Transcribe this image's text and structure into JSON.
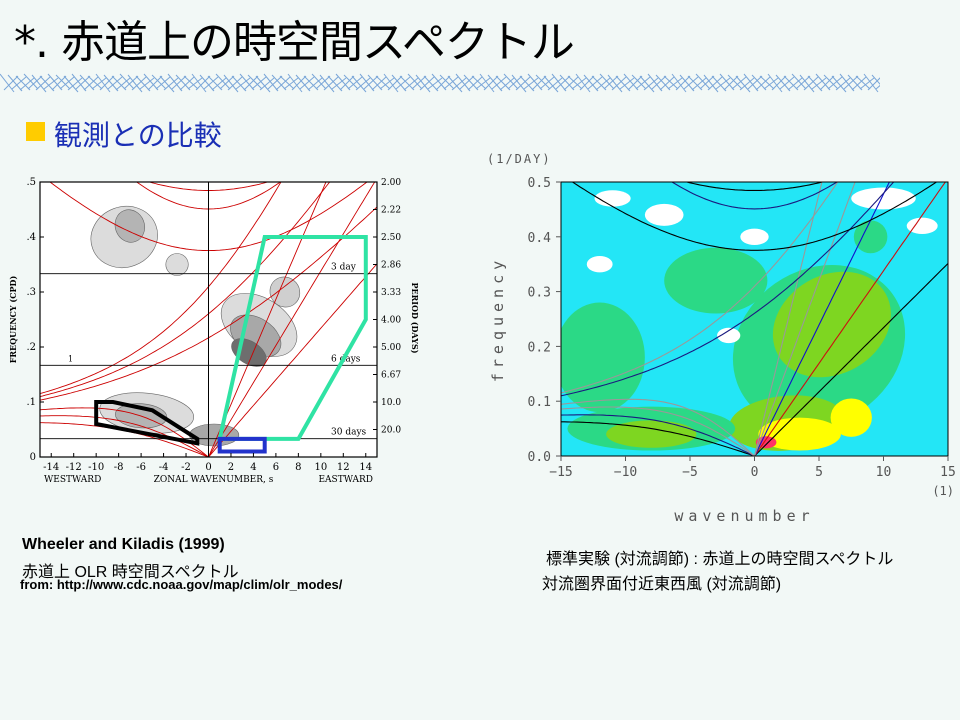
{
  "slide": {
    "title": "*. 赤道上の時空間スペクトル",
    "subtitle": "観測との比較",
    "accent_color": "#1a2fb5",
    "bullet_color": "#ffcc00"
  },
  "left_caption": {
    "line1": "Wheeler and Kiladis (1999)",
    "line2": "赤道上 OLR 時空間スペクトル",
    "line3": "from: http://www.cdc.noaa.gov/map/clim/olr_modes/"
  },
  "right_caption": {
    "line1": "標準実験 (対流調節) : 赤道上の時空間スペクトル",
    "line2": "対流圏界面付近東西風 (対流調節)"
  },
  "chart_data": [
    {
      "type": "heatmap",
      "ylabel": "FREQUENCY (CPD)",
      "y2label": "PERIOD (DAYS)",
      "xlabel_left": "WESTWARD",
      "xlabel": "ZONAL WAVENUMBER, s",
      "xlabel_right": "EASTWARD",
      "xlim": [
        -15,
        15
      ],
      "ylim": [
        0,
        0.5
      ],
      "x_ticks": [
        -14,
        -12,
        -10,
        -8,
        -6,
        -4,
        -2,
        0,
        2,
        4,
        6,
        8,
        10,
        12,
        14
      ],
      "y_ticks": [
        0,
        0.1,
        0.2,
        0.3,
        0.4,
        0.5
      ],
      "y_tick_labels": [
        "0",
        ".1",
        ".2",
        ".3",
        ".4",
        ".5"
      ],
      "period_ticks": [
        {
          "f": 0.5,
          "label": "2.00"
        },
        {
          "f": 0.45,
          "label": "2.22"
        },
        {
          "f": 0.4,
          "label": "2.50"
        },
        {
          "f": 0.35,
          "label": "2.86"
        },
        {
          "f": 0.3,
          "label": "3.33"
        },
        {
          "f": 0.25,
          "label": "4.00"
        },
        {
          "f": 0.2,
          "label": "5.00"
        },
        {
          "f": 0.15,
          "label": "6.67"
        },
        {
          "f": 0.1,
          "label": "10.0"
        },
        {
          "f": 0.05,
          "label": "20.0"
        }
      ],
      "reference_lines": [
        {
          "f": 0.3333,
          "label": "3 day"
        },
        {
          "f": 0.1667,
          "label": "6 days"
        },
        {
          "f": 0.0333,
          "label": "30 days"
        }
      ],
      "annotation_marker": "1",
      "gray_regions": [
        {
          "x": 4.5,
          "y": 0.24,
          "rx": 2.4,
          "ry": 0.075,
          "rot": -58,
          "shade": "#dcdcdc"
        },
        {
          "x": 4.2,
          "y": 0.22,
          "rx": 1.6,
          "ry": 0.05,
          "rot": -58,
          "shade": "#a8a8a8"
        },
        {
          "x": 3.6,
          "y": 0.19,
          "rx": 1.0,
          "ry": 0.035,
          "rot": -58,
          "shade": "#6e6e6e"
        },
        {
          "x": 6.8,
          "y": 0.3,
          "rx": 1.3,
          "ry": 0.028,
          "rot": -40,
          "shade": "#cfcfcf"
        },
        {
          "x": -5.5,
          "y": 0.08,
          "rx": 4.2,
          "ry": 0.036,
          "rot": 6,
          "shade": "#dcdcdc"
        },
        {
          "x": -6.0,
          "y": 0.075,
          "rx": 2.3,
          "ry": 0.022,
          "rot": 4,
          "shade": "#b4b4b4"
        },
        {
          "x": -7.5,
          "y": 0.4,
          "rx": 3.0,
          "ry": 0.055,
          "rot": -20,
          "shade": "#dcdcdc"
        },
        {
          "x": -7.0,
          "y": 0.42,
          "rx": 1.3,
          "ry": 0.03,
          "rot": -20,
          "shade": "#b4b4b4"
        },
        {
          "x": 0.5,
          "y": 0.04,
          "rx": 2.2,
          "ry": 0.02,
          "rot": 0,
          "shade": "#a8a8a8"
        },
        {
          "x": -2.8,
          "y": 0.35,
          "rx": 1.0,
          "ry": 0.02,
          "rot": 0,
          "shade": "#dcdcdc"
        }
      ],
      "highlight_regions": [
        {
          "name": "kelvin",
          "color": "#2fe3a4",
          "points": [
            [
              1,
              0.033
            ],
            [
              5,
              0.4
            ],
            [
              14,
              0.4
            ],
            [
              14,
              0.25
            ],
            [
              8,
              0.033
            ]
          ]
        },
        {
          "name": "equatorial-rossby",
          "color": "#000000",
          "points": [
            [
              -10,
              0.1
            ],
            [
              -10,
              0.06
            ],
            [
              -1,
              0.025
            ],
            [
              -1,
              0.033
            ],
            [
              -5,
              0.085
            ],
            [
              -8.5,
              0.1
            ]
          ]
        },
        {
          "name": "mjo",
          "color": "#2233cc",
          "points": [
            [
              1,
              0.01
            ],
            [
              1,
              0.033
            ],
            [
              5,
              0.033
            ],
            [
              5,
              0.01
            ]
          ]
        }
      ],
      "dispersion_color": "#cc0000"
    },
    {
      "type": "heatmap",
      "ylabel": "frequency",
      "y_unit": "(1/DAY)",
      "xlabel": "wavenumber",
      "x_unit": "(1)",
      "xlim": [
        -15,
        15
      ],
      "ylim": [
        0,
        0.5
      ],
      "x_ticks": [
        -15,
        -10,
        -5,
        0,
        5,
        10,
        15
      ],
      "x_tick_labels": [
        "−15",
        "−10",
        "−5",
        "0",
        "5",
        "10",
        "15"
      ],
      "y_ticks": [
        0,
        0.1,
        0.2,
        0.3,
        0.4,
        0.5
      ],
      "y_tick_labels": [
        "0.0",
        "0.1",
        "0.2",
        "0.3",
        "0.4",
        "0.5"
      ],
      "color_levels": [
        {
          "level": "lowest",
          "color": "#ffffff"
        },
        {
          "level": "low",
          "color": "#23e6f6"
        },
        {
          "level": "mid",
          "color": "#2bd986"
        },
        {
          "level": "high",
          "color": "#7ed621"
        },
        {
          "level": "higher",
          "color": "#ffff00"
        },
        {
          "level": "highest",
          "color": "#ff3366"
        }
      ],
      "patches": [
        {
          "x": 5,
          "y": 0.2,
          "rx": 7,
          "ry": 0.14,
          "rot": -35,
          "level": 2
        },
        {
          "x": 6,
          "y": 0.24,
          "rx": 4.8,
          "ry": 0.09,
          "rot": -30,
          "level": 3
        },
        {
          "x": 2.5,
          "y": 0.06,
          "rx": 4.5,
          "ry": 0.05,
          "rot": -5,
          "level": 3
        },
        {
          "x": 3.5,
          "y": 0.04,
          "rx": 3.2,
          "ry": 0.03,
          "rot": 0,
          "level": 4
        },
        {
          "x": 7.5,
          "y": 0.07,
          "rx": 1.6,
          "ry": 0.035,
          "rot": 0,
          "level": 4
        },
        {
          "x": 0.9,
          "y": 0.025,
          "rx": 0.8,
          "ry": 0.011,
          "rot": 0,
          "level": 5
        },
        {
          "x": -12,
          "y": 0.18,
          "rx": 3.5,
          "ry": 0.1,
          "rot": 0,
          "level": 2
        },
        {
          "x": -3,
          "y": 0.32,
          "rx": 4.0,
          "ry": 0.06,
          "rot": 0,
          "level": 2
        },
        {
          "x": -8,
          "y": 0.05,
          "rx": 6.5,
          "ry": 0.04,
          "rot": 0,
          "level": 2
        },
        {
          "x": -8,
          "y": 0.04,
          "rx": 3.5,
          "ry": 0.025,
          "rot": 0,
          "level": 3
        },
        {
          "x": -7,
          "y": 0.44,
          "rx": 1.5,
          "ry": 0.02,
          "rot": 0,
          "level": 0
        },
        {
          "x": 0,
          "y": 0.4,
          "rx": 1.1,
          "ry": 0.015,
          "rot": 0,
          "level": 0
        },
        {
          "x": 10,
          "y": 0.47,
          "rx": 2.5,
          "ry": 0.02,
          "rot": 0,
          "level": 0
        },
        {
          "x": -12,
          "y": 0.35,
          "rx": 1.0,
          "ry": 0.015,
          "rot": 0,
          "level": 0
        },
        {
          "x": -2,
          "y": 0.22,
          "rx": 0.9,
          "ry": 0.014,
          "rot": 0,
          "level": 0
        },
        {
          "x": 13,
          "y": 0.42,
          "rx": 1.2,
          "ry": 0.015,
          "rot": 0,
          "level": 0
        },
        {
          "x": -11,
          "y": 0.47,
          "rx": 1.4,
          "ry": 0.015,
          "rot": 0,
          "level": 0
        },
        {
          "x": 9,
          "y": 0.4,
          "rx": 1.3,
          "ry": 0.03,
          "rot": 0,
          "level": 2
        }
      ],
      "curve_colors": {
        "black": "#000000",
        "navy": "#1a1a80",
        "blue": "#1111cc",
        "red": "#cc1111",
        "gray": "#999999"
      }
    }
  ]
}
